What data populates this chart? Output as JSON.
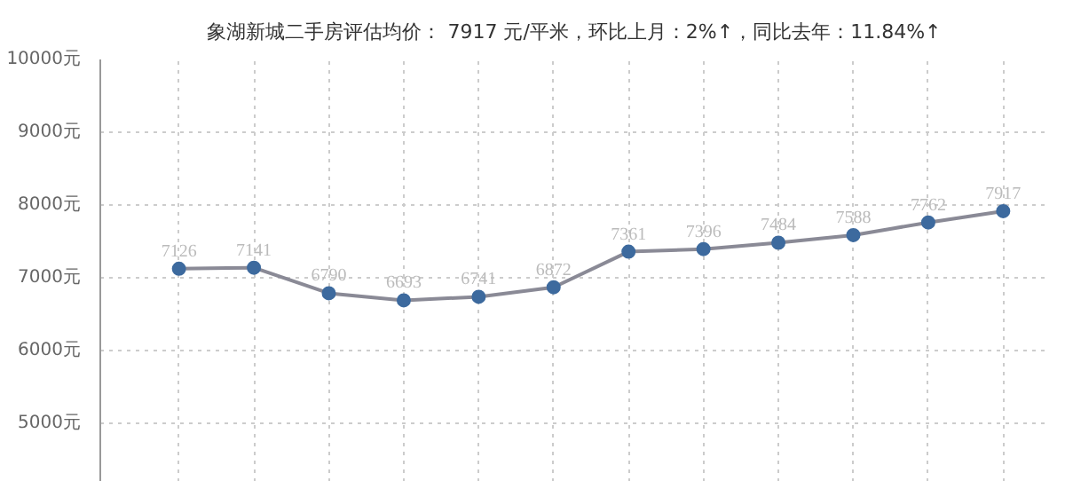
{
  "chart_data": {
    "type": "line",
    "title": "象湖新城二手房评估均价： 7917 元/平米，环比上月：2%↑，同比去年：11.84%↑",
    "categories": [
      null,
      null,
      null,
      null,
      null,
      null,
      null,
      null,
      null,
      null,
      null,
      null
    ],
    "series": [
      {
        "color": "#3d6a9e",
        "values": [
          7126,
          7141,
          6790,
          6693,
          6741,
          6872,
          7361,
          7396,
          7484,
          7588,
          7762,
          7917
        ]
      }
    ],
    "ylim": [
      4200,
      10000
    ],
    "yticks": [
      {
        "value": 5000,
        "label": "5000元"
      },
      {
        "value": 6000,
        "label": "6000元"
      },
      {
        "value": 7000,
        "label": "7000元"
      },
      {
        "value": 8000,
        "label": "8000元"
      },
      {
        "value": 9000,
        "label": "9000元"
      },
      {
        "value": 10000,
        "label": "10000元"
      }
    ],
    "tick_labels": "y",
    "grid": true,
    "marker": "circle",
    "line_style": "solid",
    "data_labels": true
  }
}
